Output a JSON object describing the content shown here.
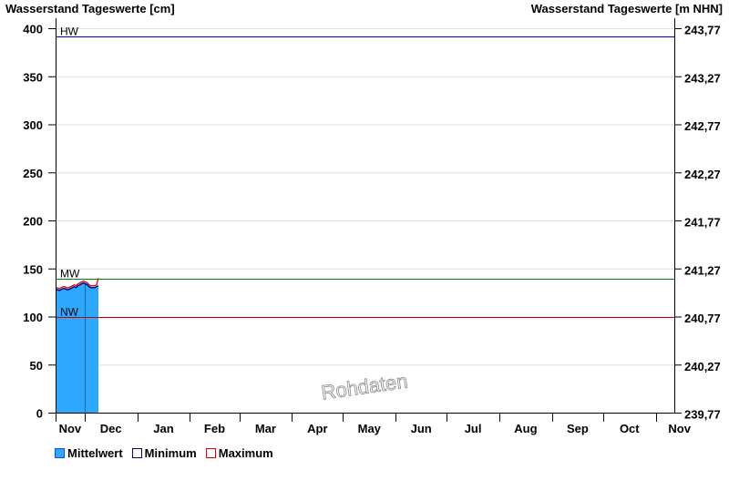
{
  "chart_data": {
    "type": "area",
    "title_left": "Wasserstand Tageswerte [cm]",
    "title_right": "Wasserstand Tageswerte [m NHN]",
    "ylim": [
      0,
      400
    ],
    "yticks": [
      0,
      50,
      100,
      150,
      200,
      250,
      300,
      350,
      400
    ],
    "yticks_right": [
      "239,77",
      "240,27",
      "240,77",
      "241,27",
      "241,77",
      "242,27",
      "242,77",
      "243,27",
      "243,77"
    ],
    "xtick_labels": [
      "Nov",
      "Dec",
      "Jan",
      "Feb",
      "Mar",
      "Apr",
      "May",
      "Jun",
      "Jul",
      "Aug",
      "Sep",
      "Oct",
      "Nov"
    ],
    "grid": true,
    "reference_lines": [
      {
        "label": "HW",
        "value": 391,
        "color": "#0000c0"
      },
      {
        "label": "MW",
        "value": 139,
        "color": "#008000"
      },
      {
        "label": "NW",
        "value": 100,
        "color": "#d00000"
      }
    ],
    "x": [
      "Nov 14",
      "Nov 15",
      "Nov 16",
      "Nov 17",
      "Nov 18",
      "Nov 19",
      "Nov 20",
      "Nov 21",
      "Nov 22",
      "Nov 23",
      "Nov 24",
      "Nov 25",
      "Nov 26",
      "Nov 27",
      "Nov 28",
      "Nov 29",
      "Nov 30",
      "Dec 1",
      "Dec 2",
      "Dec 3",
      "Dec 4",
      "Dec 5",
      "Dec 6",
      "Dec 7"
    ],
    "series": [
      {
        "name": "Mittelwert",
        "color": "#2ea8ff",
        "values": [
          129,
          129,
          128,
          129,
          130,
          130,
          129,
          129,
          130,
          131,
          132,
          131,
          133,
          134,
          135,
          136,
          135,
          134,
          132,
          131,
          131,
          131,
          132,
          133
        ]
      },
      {
        "name": "Minimum",
        "color": "#000080",
        "values": [
          128,
          128,
          127,
          128,
          129,
          129,
          128,
          128,
          129,
          130,
          131,
          130,
          132,
          133,
          134,
          135,
          134,
          133,
          131,
          130,
          130,
          130,
          131,
          132
        ]
      },
      {
        "name": "Maximum",
        "color": "#e00000",
        "values": [
          130,
          130,
          129,
          130,
          131,
          131,
          130,
          130,
          131,
          132,
          133,
          132,
          134,
          135,
          136,
          137,
          136,
          135,
          133,
          132,
          132,
          132,
          133,
          140
        ]
      }
    ],
    "watermark": "Rohdaten"
  }
}
